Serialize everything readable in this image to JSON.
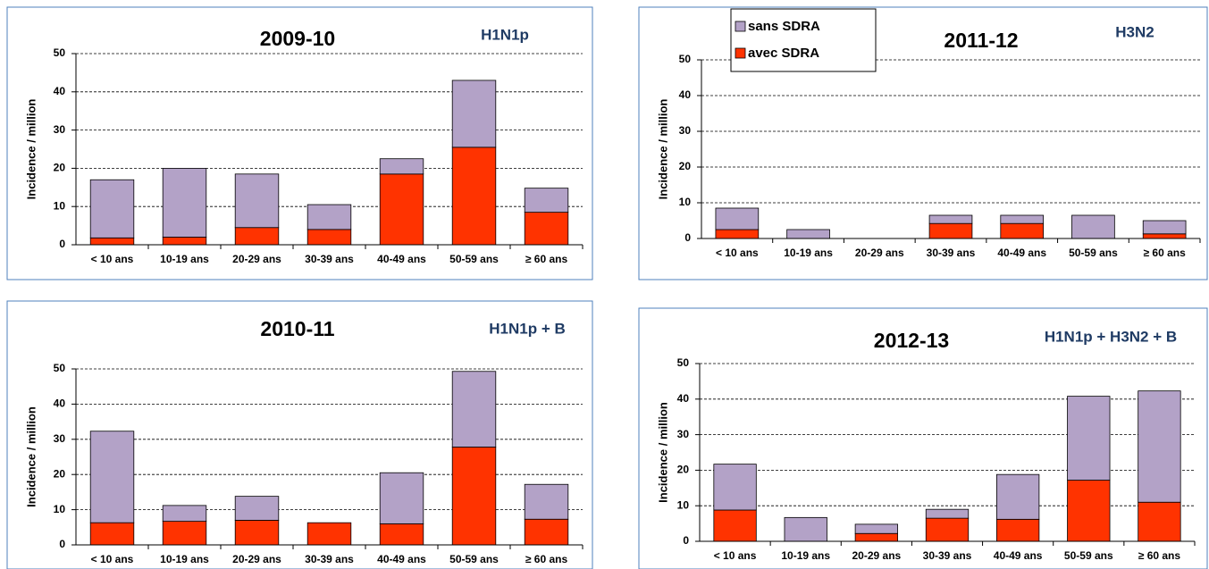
{
  "chart_data": [
    {
      "type": "bar",
      "stacked": true,
      "title": "2009-10",
      "subtitle": "H1N1p",
      "ylabel": "Incidence / million",
      "categories": [
        "< 10 ans",
        "10-19 ans",
        "20-29 ans",
        "30-39 ans",
        "40-49 ans",
        "50-59 ans",
        "≥ 60 ans"
      ],
      "series": [
        {
          "color": "#b3a2c7",
          "values": [
            15.2,
            18,
            14,
            6.5,
            4,
            17.5,
            6.3
          ]
        },
        {
          "color": "#ff3300",
          "values": [
            1.8,
            2,
            4.5,
            4,
            18.5,
            25.5,
            8.5
          ]
        }
      ],
      "ylim": [
        0,
        50
      ],
      "yticks": [
        0,
        10,
        20,
        30,
        40,
        50
      ],
      "grid": true
    },
    {
      "type": "bar",
      "stacked": true,
      "title": "2011-12",
      "subtitle": "H3N2",
      "ylabel": "Incidence / million",
      "categories": [
        "< 10 ans",
        "10-19 ans",
        "20-29 ans",
        "30-39 ans",
        "40-49 ans",
        "50-59 ans",
        "≥ 60 ans"
      ],
      "series": [
        {
          "name": "sans SDRA",
          "color": "#b3a2c7",
          "values": [
            6,
            2.5,
            0,
            2.3,
            2.3,
            6.5,
            3.7
          ]
        },
        {
          "name": "avec SDRA",
          "color": "#ff3300",
          "values": [
            2.5,
            0,
            0,
            4.2,
            4.2,
            0,
            1.3
          ]
        }
      ],
      "ylim": [
        0,
        50
      ],
      "yticks": [
        0,
        10,
        20,
        30,
        40,
        50
      ],
      "grid": true,
      "legend": "top-left"
    },
    {
      "type": "bar",
      "stacked": true,
      "title": "2010-11",
      "subtitle": "H1N1p + B",
      "ylabel": "Incidence / million",
      "categories": [
        "< 10 ans",
        "10-19 ans",
        "20-29 ans",
        "30-39 ans",
        "40-49 ans",
        "50-59 ans",
        "≥ 60 ans"
      ],
      "series": [
        {
          "color": "#b3a2c7",
          "values": [
            26,
            4.5,
            6.8,
            0,
            14.5,
            21.5,
            9.9
          ]
        },
        {
          "color": "#ff3300",
          "values": [
            6.3,
            6.7,
            7,
            6.3,
            6,
            27.8,
            7.3
          ]
        }
      ],
      "ylim": [
        0,
        50
      ],
      "yticks": [
        0,
        10,
        20,
        30,
        40,
        50
      ],
      "grid": true
    },
    {
      "type": "bar",
      "stacked": true,
      "title": "2012-13",
      "subtitle": "H1N1p + H3N2 + B",
      "ylabel": "Incidence / million",
      "categories": [
        "< 10 ans",
        "10-19 ans",
        "20-29 ans",
        "30-39 ans",
        "40-49 ans",
        "50-59 ans",
        "≥ 60 ans"
      ],
      "series": [
        {
          "color": "#b3a2c7",
          "values": [
            12.9,
            6.7,
            2.6,
            2.5,
            12.6,
            23.6,
            31.3
          ]
        },
        {
          "color": "#ff3300",
          "values": [
            8.8,
            0,
            2.2,
            6.5,
            6.2,
            17.2,
            11
          ]
        }
      ],
      "ylim": [
        0,
        50
      ],
      "yticks": [
        0,
        10,
        20,
        30,
        40,
        50
      ],
      "grid": true
    }
  ]
}
